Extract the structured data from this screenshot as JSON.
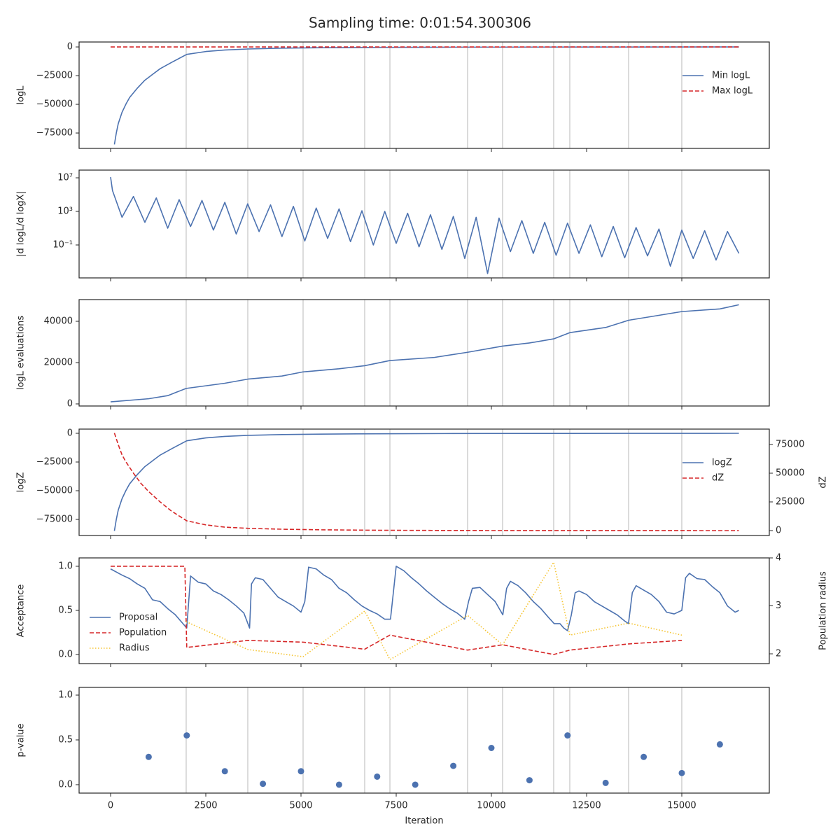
{
  "title": "Sampling time: 0:01:54.300306",
  "chart_data": [
    {
      "type": "line",
      "ylabel": "logL",
      "xlim": [
        -827,
        17298
      ],
      "ylim": [
        -88400,
        4300
      ],
      "yticks": [
        0,
        {
          "value": -25000,
          "label": "−25000"
        },
        {
          "value": -50000,
          "label": "−50000"
        },
        {
          "value": -75000,
          "label": "−75000"
        }
      ],
      "vlines": [
        1985,
        3603,
        5055,
        6673,
        7335,
        9375,
        10294,
        11636,
        12059,
        13603,
        15000
      ],
      "legend": "upper right",
      "series": [
        {
          "name": "Min logL",
          "color": "#4c72b0",
          "linestyle": "solid",
          "x": [
            100,
            150,
            200,
            300,
            400,
            500,
            700,
            900,
            1100,
            1300,
            1600,
            2000,
            2500,
            3000,
            3600,
            4500,
            5500,
            7000,
            9000,
            12000,
            16500
          ],
          "values": [
            -85000,
            -75000,
            -67000,
            -57000,
            -50000,
            -44000,
            -36000,
            -29000,
            -24000,
            -19000,
            -13500,
            -6500,
            -4000,
            -2700,
            -1800,
            -1100,
            -700,
            -400,
            -200,
            -80,
            0
          ]
        },
        {
          "name": "Max logL",
          "color": "#d62728",
          "linestyle": "dashed",
          "x": [
            0,
            16500
          ],
          "values": [
            0,
            0
          ]
        }
      ]
    },
    {
      "type": "line",
      "ylabel": "|d logL/d logX|",
      "log": true,
      "xlim": [
        -827,
        17298
      ],
      "ylim": [
        1.2e-05,
        83000000.0
      ],
      "yticks": [
        {
          "value": 10000000,
          "label": "10⁷"
        },
        {
          "value": 1000,
          "label": "10³"
        },
        {
          "value": 0.1,
          "label": "10⁻¹"
        }
      ],
      "vlines": [
        1985,
        3603,
        5055,
        6673,
        7335,
        9375,
        10294,
        11636,
        12059,
        13603,
        15000
      ],
      "series": [
        {
          "color": "#4c72b0",
          "linestyle": "solid",
          "x": [
            0,
            50,
            300,
            600,
            900,
            1200,
            1500,
            1800,
            2100,
            2400,
            2700,
            3000,
            3300,
            3600,
            3900,
            4200,
            4500,
            4800,
            5100,
            5400,
            5700,
            6000,
            6300,
            6600,
            6900,
            7200,
            7500,
            7800,
            8100,
            8400,
            8700,
            9000,
            9300,
            9600,
            9900,
            10200,
            10500,
            10800,
            11100,
            11400,
            11700,
            12000,
            12300,
            12600,
            12900,
            13200,
            13500,
            13800,
            14100,
            14400,
            14700,
            15000,
            15300,
            15600,
            15900,
            16200,
            16500
          ],
          "values": [
            12000000,
            300000,
            200,
            60000,
            50,
            40000,
            10,
            25000,
            16,
            20000,
            6,
            12000,
            2,
            8000,
            4,
            6000,
            1,
            4000,
            0.3,
            2500,
            0.6,
            2000,
            0.25,
            1200,
            0.1,
            1000,
            0.16,
            600,
            0.06,
            400,
            0.03,
            250,
            0.0025,
            200,
            4e-05,
            160,
            0.016,
            80,
            0.01,
            50,
            0.006,
            40,
            0.01,
            25,
            0.004,
            16,
            0.003,
            12,
            0.005,
            8,
            0.0003,
            6,
            0.0025,
            5,
            0.0016,
            4,
            0.01
          ]
        }
      ]
    },
    {
      "type": "line",
      "ylabel": "logL evaluations",
      "xlim": [
        -827,
        17298
      ],
      "ylim": [
        -1017,
        50508
      ],
      "yticks": [
        0,
        20000,
        40000
      ],
      "vlines": [
        1985,
        3603,
        5055,
        6673,
        7335,
        9375,
        10294,
        11636,
        12059,
        13603,
        15000
      ],
      "series": [
        {
          "color": "#4c72b0",
          "linestyle": "solid",
          "x": [
            0,
            1000,
            1500,
            1985,
            3000,
            3603,
            4500,
            5055,
            6000,
            6673,
            7335,
            8500,
            9375,
            10294,
            11000,
            11636,
            12059,
            13000,
            13603,
            15000,
            16000,
            16500
          ],
          "values": [
            1000,
            2500,
            4000,
            7500,
            10000,
            12000,
            13500,
            15500,
            17000,
            18500,
            21000,
            22500,
            25000,
            28000,
            29500,
            31500,
            34500,
            37000,
            40500,
            44700,
            46000,
            48000
          ]
        }
      ]
    },
    {
      "type": "line",
      "ylabel": "logZ",
      "y2label": "dZ",
      "xlim": [
        -827,
        17298
      ],
      "ylim": [
        -89000,
        3660
      ],
      "yticks": [
        0,
        {
          "value": -25000,
          "label": "−25000"
        },
        {
          "value": -50000,
          "label": "−50000"
        },
        {
          "value": -75000,
          "label": "−75000"
        }
      ],
      "y2lim": [
        -4270,
        88400
      ],
      "y2ticks": [
        0,
        25000,
        50000,
        75000
      ],
      "vlines": [
        1985,
        3603,
        5055,
        6673,
        7335,
        9375,
        10294,
        11636,
        12059,
        13603,
        15000
      ],
      "legend": "upper right",
      "series": [
        {
          "name": "logZ",
          "color": "#4c72b0",
          "linestyle": "solid",
          "x": [
            100,
            150,
            200,
            300,
            400,
            500,
            700,
            900,
            1100,
            1300,
            1600,
            2000,
            2500,
            3000,
            3600,
            4500,
            5500,
            7000,
            9000,
            12000,
            16500
          ],
          "values": [
            -85000,
            -75000,
            -67000,
            -57000,
            -50000,
            -44000,
            -36000,
            -29000,
            -24000,
            -19000,
            -13500,
            -6500,
            -4000,
            -2700,
            -1800,
            -1100,
            -700,
            -400,
            -200,
            -80,
            0
          ]
        },
        {
          "name": "dZ",
          "color": "#d62728",
          "linestyle": "dashed",
          "axis": "y2",
          "x": [
            100,
            200,
            300,
            400,
            600,
            800,
            1000,
            1300,
            1600,
            2000,
            2500,
            3000,
            3600,
            4500,
            5500,
            7000,
            9000,
            12000,
            16500
          ],
          "values": [
            85000,
            75000,
            66000,
            60000,
            50000,
            41000,
            34000,
            25000,
            17000,
            8500,
            5000,
            3000,
            2000,
            1200,
            700,
            300,
            100,
            30,
            0
          ]
        }
      ]
    },
    {
      "type": "line",
      "ylabel": "Acceptance",
      "y2label": "Population radius",
      "xlim": [
        -827,
        17298
      ],
      "ylim": [
        -0.103,
        1.095
      ],
      "yticks": [
        {
          "value": 0,
          "label": "0.0"
        },
        0.5,
        {
          "value": 1,
          "label": "1.0"
        }
      ],
      "y2lim": [
        1.796,
        4.0
      ],
      "y2ticks": [
        2,
        3,
        4
      ],
      "vlines": [],
      "legend": "lower left",
      "series": [
        {
          "name": "Proposal",
          "color": "#4c72b0",
          "linestyle": "solid",
          "x": [
            0,
            300,
            500,
            700,
            900,
            1100,
            1300,
            1500,
            1700,
            1900,
            2000,
            2100,
            2300,
            2500,
            2700,
            2900,
            3100,
            3300,
            3500,
            3650,
            3700,
            3800,
            4000,
            4200,
            4400,
            4600,
            4800,
            5000,
            5100,
            5200,
            5400,
            5600,
            5800,
            6000,
            6200,
            6400,
            6600,
            6800,
            7000,
            7200,
            7350,
            7500,
            7700,
            7900,
            8100,
            8300,
            8500,
            8700,
            8900,
            9100,
            9300,
            9400,
            9500,
            9700,
            9900,
            10100,
            10300,
            10400,
            10500,
            10700,
            10900,
            11100,
            11300,
            11500,
            11650,
            11800,
            11900,
            12000,
            12100,
            12200,
            12300,
            12500,
            12700,
            12900,
            13100,
            13300,
            13500,
            13600,
            13700,
            13800,
            14000,
            14200,
            14400,
            14600,
            14800,
            15000,
            15100,
            15200,
            15400,
            15600,
            15800,
            16000,
            16200,
            16400,
            16500
          ],
          "values": [
            0.97,
            0.9,
            0.86,
            0.8,
            0.75,
            0.62,
            0.6,
            0.52,
            0.45,
            0.35,
            0.3,
            0.89,
            0.82,
            0.8,
            0.72,
            0.68,
            0.62,
            0.55,
            0.47,
            0.3,
            0.8,
            0.87,
            0.85,
            0.75,
            0.65,
            0.6,
            0.55,
            0.48,
            0.6,
            0.99,
            0.97,
            0.9,
            0.85,
            0.75,
            0.7,
            0.62,
            0.55,
            0.5,
            0.46,
            0.4,
            0.4,
            1.0,
            0.95,
            0.87,
            0.8,
            0.72,
            0.65,
            0.58,
            0.52,
            0.47,
            0.4,
            0.6,
            0.75,
            0.76,
            0.68,
            0.6,
            0.45,
            0.75,
            0.83,
            0.78,
            0.7,
            0.6,
            0.52,
            0.42,
            0.35,
            0.35,
            0.3,
            0.27,
            0.45,
            0.7,
            0.72,
            0.68,
            0.6,
            0.55,
            0.5,
            0.45,
            0.38,
            0.35,
            0.7,
            0.78,
            0.73,
            0.68,
            0.6,
            0.48,
            0.46,
            0.5,
            0.87,
            0.92,
            0.86,
            0.85,
            0.77,
            0.7,
            0.55,
            0.48,
            0.5
          ]
        },
        {
          "name": "Population",
          "color": "#d62728",
          "linestyle": "dashed",
          "x": [
            0,
            1950,
            2000,
            3603,
            5055,
            6673,
            7335,
            9375,
            10294,
            11636,
            12059,
            13603,
            15000
          ],
          "values": [
            1.0,
            1.0,
            0.08,
            0.16,
            0.14,
            0.06,
            0.22,
            0.05,
            0.11,
            0.0,
            0.05,
            0.12,
            0.16
          ]
        },
        {
          "name": "Radius",
          "color": "#f5c431",
          "linestyle": "dotted",
          "axis": "y2",
          "x": [
            1985,
            3603,
            5055,
            6673,
            7335,
            9375,
            10294,
            11636,
            12059,
            13603,
            15000
          ],
          "values": [
            2.67,
            2.09,
            1.94,
            2.89,
            1.88,
            2.8,
            2.19,
            3.91,
            2.39,
            2.64,
            2.39
          ]
        }
      ]
    },
    {
      "type": "scatter",
      "ylabel": "p-value",
      "xlabel": "Iteration",
      "xlim": [
        -827,
        17298
      ],
      "ylim": [
        -0.094,
        1.086
      ],
      "yticks": [
        {
          "value": 0,
          "label": "0.0"
        },
        0.5,
        {
          "value": 1,
          "label": "1.0"
        }
      ],
      "xticks": [
        0,
        2500,
        5000,
        7500,
        10000,
        12500,
        15000
      ],
      "vlines": [
        1985,
        3603,
        5055,
        6673,
        7335,
        9375,
        10294,
        11636,
        12059,
        13603,
        15000
      ],
      "series": [
        {
          "color": "#4c72b0",
          "x": [
            1000,
            2000,
            3000,
            4000,
            5000,
            6000,
            7000,
            8000,
            9000,
            10000,
            11000,
            12000,
            13000,
            14000,
            15000,
            16000
          ],
          "values": [
            0.31,
            0.55,
            0.15,
            0.01,
            0.15,
            0.0,
            0.09,
            0.0,
            0.21,
            0.41,
            0.05,
            0.55,
            0.02,
            0.31,
            0.13,
            0.45
          ]
        }
      ]
    }
  ]
}
